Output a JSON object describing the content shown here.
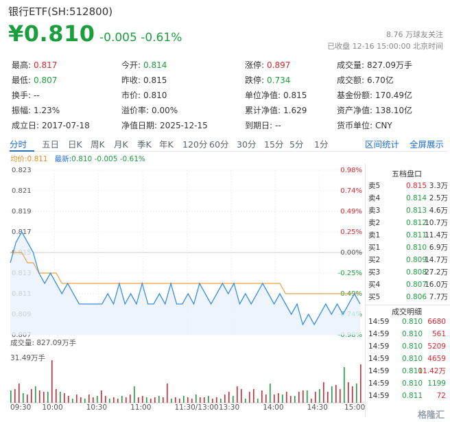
{
  "header": {
    "title": "银行ETF(SH:512800)",
    "price": "¥0.810",
    "change": "-0.005 -0.61%",
    "followers": "8.76 万球友关注",
    "status": "已收盘 12-16 15:00:00 北京时间"
  },
  "stats": [
    {
      "k": "最高:",
      "v": "0.817",
      "c": "red"
    },
    {
      "k": "今开:",
      "v": "0.814",
      "c": "green"
    },
    {
      "k": "涨停:",
      "v": "0.897",
      "c": "red"
    },
    {
      "k": "成交量:",
      "v": "827.09万手",
      "c": ""
    },
    {
      "k": "最低:",
      "v": "0.807",
      "c": "green"
    },
    {
      "k": "昨收:",
      "v": "0.815",
      "c": ""
    },
    {
      "k": "跌停:",
      "v": "0.734",
      "c": "green"
    },
    {
      "k": "成交额:",
      "v": "6.70亿",
      "c": ""
    },
    {
      "k": "换手:",
      "v": "--",
      "c": ""
    },
    {
      "k": "市价:",
      "v": "0.810",
      "c": ""
    },
    {
      "k": "单位净值:",
      "v": "0.815",
      "c": ""
    },
    {
      "k": "基金份额:",
      "v": "170.49亿",
      "c": ""
    },
    {
      "k": "振幅:",
      "v": "1.23%",
      "c": ""
    },
    {
      "k": "溢价率:",
      "v": "0.00%",
      "c": ""
    },
    {
      "k": "累计净值:",
      "v": "1.629",
      "c": ""
    },
    {
      "k": "资产净值:",
      "v": "138.10亿",
      "c": ""
    },
    {
      "k": "成立日:",
      "v": "2017-07-18",
      "c": ""
    },
    {
      "k": "净值日期:",
      "v": "2025-12-15",
      "c": ""
    },
    {
      "k": "到期日:",
      "v": "--",
      "c": ""
    },
    {
      "k": "货币单位:",
      "v": "CNY",
      "c": ""
    }
  ],
  "tabs": [
    "分时",
    "五日",
    "日K",
    "周K",
    "月K",
    "季K",
    "年K",
    "120分",
    "60分",
    "30分",
    "15分",
    "5分",
    "1分"
  ],
  "tab_actions": [
    "区间统计",
    "全屏展示"
  ],
  "legend": {
    "avg_label": "均价:",
    "avg_value": "0.811",
    "latest_label": "最新:",
    "latest_value": "0.810 -0.005 -0.61%"
  },
  "orderbook": {
    "title": "五档盘口",
    "rows": [
      {
        "l": "卖5",
        "p": "0.815",
        "q": "3.3万",
        "c": "red"
      },
      {
        "l": "卖4",
        "p": "0.814",
        "q": "2.5万",
        "c": "green"
      },
      {
        "l": "卖3",
        "p": "0.813",
        "q": "4.6万",
        "c": "green"
      },
      {
        "l": "卖2",
        "p": "0.812",
        "q": "10.7万",
        "c": "green"
      },
      {
        "l": "卖1",
        "p": "0.811",
        "q": "11.4万",
        "c": "green"
      },
      {
        "l": "买1",
        "p": "0.810",
        "q": "6.9万",
        "c": "green"
      },
      {
        "l": "买2",
        "p": "0.809",
        "q": "14.7万",
        "c": "green"
      },
      {
        "l": "买3",
        "p": "0.808",
        "q": "27.2万",
        "c": "green"
      },
      {
        "l": "买4",
        "p": "0.807",
        "q": "16.0万",
        "c": "green"
      },
      {
        "l": "买5",
        "p": "0.806",
        "q": "7.7万",
        "c": "green"
      }
    ]
  },
  "ticks": {
    "title": "成交明细",
    "rows": [
      {
        "t": "14:59",
        "p": "0.810",
        "v": "6680",
        "c": "red"
      },
      {
        "t": "14:59",
        "p": "0.810",
        "v": "561",
        "c": "red"
      },
      {
        "t": "14:59",
        "p": "0.810",
        "v": "5209",
        "c": "red"
      },
      {
        "t": "14:59",
        "p": "0.810",
        "v": "4659",
        "c": "red"
      },
      {
        "t": "14:59",
        "p": "0.810",
        "v": "11.42万",
        "c": "red"
      },
      {
        "t": "14:59",
        "p": "0.810",
        "v": "1199",
        "c": "green"
      },
      {
        "t": "14:59",
        "p": "0.811",
        "v": "72",
        "c": "red"
      }
    ]
  },
  "volume": {
    "label": "成交量: 827.09万手",
    "max": "31.49万手"
  },
  "chart_data": {
    "type": "line",
    "y_left_ticks": [
      "0.823",
      "0.821",
      "0.819",
      "0.817",
      "0.815",
      "0.813",
      "0.811",
      "0.809",
      "0.807"
    ],
    "y_right_ticks": [
      "0.98%",
      "0.74%",
      "0.49%",
      "0.25%",
      "0.00%",
      "-0.25%",
      "-0.49%",
      "-0.74%",
      "-0.98%"
    ],
    "ylim": [
      0.807,
      0.823
    ],
    "x_labels": [
      "09:30",
      "10:00",
      "10:30",
      "11:00",
      "11:30/13:00",
      "13:30",
      "14:00",
      "14:30",
      "15:00"
    ],
    "series": [
      {
        "name": "最新",
        "values": [
          0.814,
          0.816,
          0.817,
          0.816,
          0.815,
          0.813,
          0.812,
          0.813,
          0.812,
          0.811,
          0.812,
          0.811,
          0.81,
          0.81,
          0.81,
          0.81,
          0.81,
          0.811,
          0.81,
          0.812,
          0.81,
          0.811,
          0.81,
          0.812,
          0.81,
          0.81,
          0.811,
          0.81,
          0.812,
          0.81,
          0.81,
          0.811,
          0.81,
          0.812,
          0.811,
          0.81,
          0.811,
          0.812,
          0.811,
          0.812,
          0.81,
          0.811,
          0.81,
          0.811,
          0.812,
          0.811,
          0.81,
          0.811,
          0.81,
          0.809,
          0.81,
          0.808,
          0.809,
          0.808,
          0.809,
          0.81,
          0.809,
          0.81,
          0.809,
          0.81,
          0.811,
          0.81
        ]
      },
      {
        "name": "均价",
        "values": [
          0.815,
          0.815,
          0.815,
          0.814,
          0.814,
          0.813,
          0.813,
          0.813,
          0.813,
          0.812,
          0.812,
          0.812,
          0.812,
          0.812,
          0.812,
          0.812,
          0.812,
          0.812,
          0.812,
          0.812,
          0.812,
          0.812,
          0.812,
          0.812,
          0.812,
          0.812,
          0.812,
          0.812,
          0.812,
          0.812,
          0.812,
          0.812,
          0.812,
          0.812,
          0.812,
          0.812,
          0.812,
          0.812,
          0.812,
          0.812,
          0.812,
          0.812,
          0.812,
          0.812,
          0.812,
          0.812,
          0.812,
          0.812,
          0.811,
          0.811,
          0.811,
          0.811,
          0.811,
          0.811,
          0.811,
          0.811,
          0.811,
          0.811,
          0.811,
          0.811,
          0.811,
          0.811
        ]
      }
    ],
    "volume_values": [
      9,
      10,
      14,
      7,
      6,
      10,
      12,
      9,
      8,
      8,
      31,
      10,
      8,
      7,
      5,
      3,
      6,
      4,
      3,
      6,
      4,
      5,
      9,
      5,
      3,
      4,
      3,
      5,
      4,
      6,
      12,
      4,
      5,
      4,
      3,
      4,
      5,
      4,
      14,
      3,
      4,
      3,
      5,
      4,
      3,
      6,
      4,
      4,
      5,
      3,
      4,
      3,
      6,
      8,
      5,
      12,
      10,
      3,
      8,
      10,
      3,
      9,
      6,
      14,
      6,
      7,
      6,
      8,
      5,
      5,
      8,
      9,
      9,
      3,
      8,
      10,
      15,
      8,
      12,
      13,
      10,
      26,
      15,
      12,
      14,
      28
    ]
  },
  "footer": {
    "logo": "格隆汇"
  }
}
